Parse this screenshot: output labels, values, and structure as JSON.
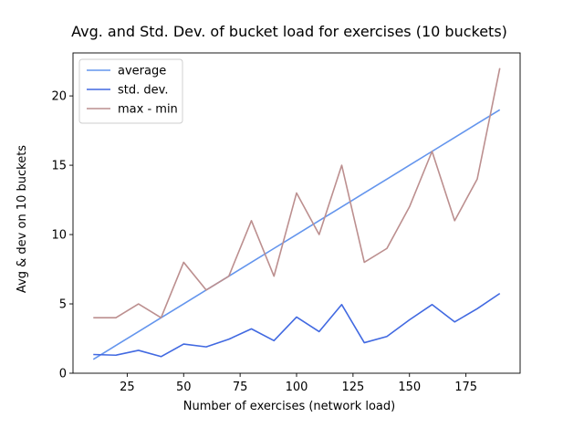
{
  "chart_data": {
    "type": "line",
    "title": "Avg. and Std. Dev. of bucket load for exercises (10 buckets)",
    "xlabel": "Number of exercises (network load)",
    "ylabel": "Avg & dev on 10 buckets",
    "xlim": [
      1,
      199
    ],
    "ylim": [
      0,
      23.1
    ],
    "xticks": [
      25,
      50,
      75,
      100,
      125,
      150,
      175
    ],
    "yticks": [
      0,
      5,
      10,
      15,
      20
    ],
    "grid": false,
    "legend_position": "top-left",
    "x": [
      10,
      20,
      30,
      40,
      50,
      60,
      70,
      80,
      90,
      100,
      110,
      120,
      130,
      140,
      150,
      160,
      170,
      180,
      190
    ],
    "series": [
      {
        "name": "average",
        "color": "#6495ED",
        "values": [
          1,
          2,
          3,
          4,
          5,
          6,
          7,
          8,
          9,
          10,
          11,
          12,
          13,
          14,
          15,
          16,
          17,
          18,
          19
        ]
      },
      {
        "name": "std. dev.",
        "color": "#4169E1",
        "values": [
          1.35,
          1.3,
          1.65,
          1.2,
          2.1,
          1.9,
          2.45,
          3.2,
          2.35,
          4.05,
          3.0,
          4.95,
          2.2,
          2.65,
          3.85,
          4.95,
          3.7,
          4.65,
          5.75
        ]
      },
      {
        "name": "max - min",
        "color": "#BC8F8F",
        "values": [
          4,
          4,
          5,
          4,
          8,
          6,
          7,
          11,
          7,
          13,
          10,
          15,
          8,
          9,
          12,
          16,
          11,
          14,
          22
        ]
      }
    ]
  }
}
